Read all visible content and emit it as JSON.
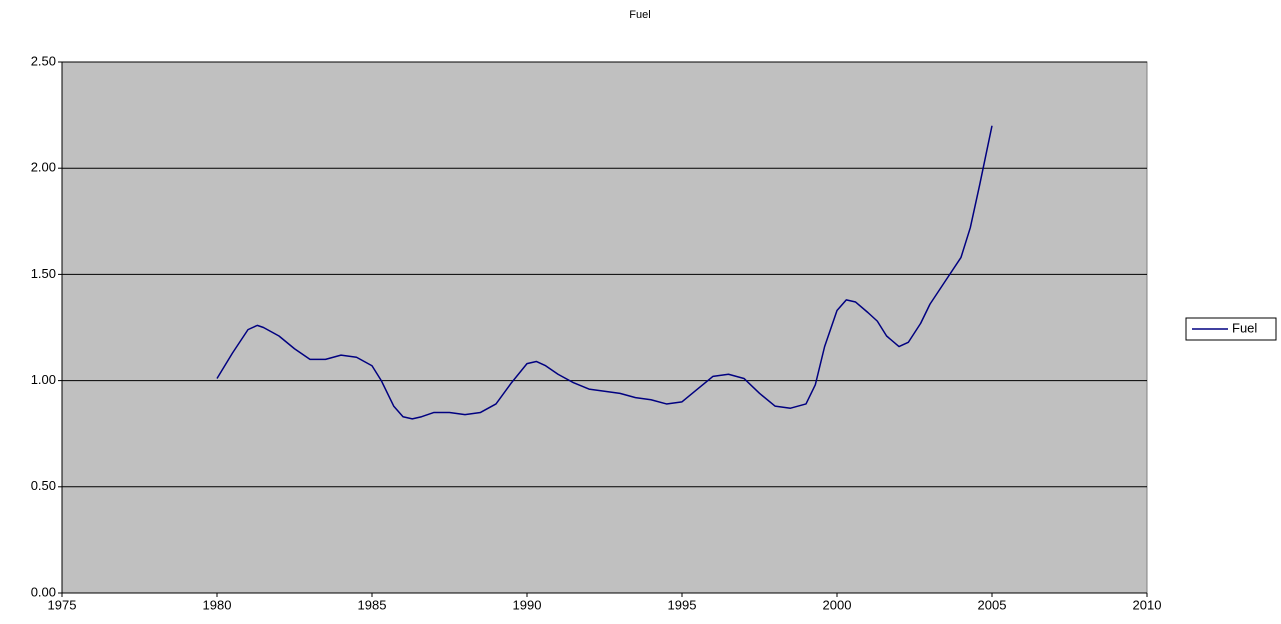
{
  "chart_data": {
    "type": "line",
    "title": "Fuel",
    "series": [
      {
        "name": "Fuel",
        "color": "#000080",
        "x": [
          1980,
          1980.5,
          1981,
          1981.3,
          1981.5,
          1982,
          1982.5,
          1983,
          1983.5,
          1984,
          1984.5,
          1985,
          1985.3,
          1985.7,
          1986,
          1986.3,
          1986.6,
          1987,
          1987.5,
          1988,
          1988.5,
          1989,
          1989.5,
          1990,
          1990.3,
          1990.6,
          1991,
          1991.5,
          1992,
          1992.5,
          1993,
          1993.5,
          1994,
          1994.5,
          1995,
          1995.5,
          1996,
          1996.5,
          1997,
          1997.5,
          1998,
          1998.5,
          1999,
          1999.3,
          1999.6,
          2000,
          2000.3,
          2000.6,
          2001,
          2001.3,
          2001.6,
          2002,
          2002.3,
          2002.7,
          2003,
          2003.5,
          2004,
          2004.3,
          2004.6,
          2005
        ],
        "values": [
          1.01,
          1.13,
          1.24,
          1.26,
          1.25,
          1.21,
          1.15,
          1.1,
          1.1,
          1.12,
          1.11,
          1.07,
          1.0,
          0.88,
          0.83,
          0.82,
          0.83,
          0.85,
          0.85,
          0.84,
          0.85,
          0.89,
          0.99,
          1.08,
          1.09,
          1.07,
          1.03,
          0.99,
          0.96,
          0.95,
          0.94,
          0.92,
          0.91,
          0.89,
          0.9,
          0.96,
          1.02,
          1.03,
          1.01,
          0.94,
          0.88,
          0.87,
          0.89,
          0.98,
          1.16,
          1.33,
          1.38,
          1.37,
          1.32,
          1.28,
          1.21,
          1.16,
          1.18,
          1.27,
          1.36,
          1.47,
          1.58,
          1.72,
          1.92,
          2.2
        ]
      }
    ],
    "xlim": [
      1975,
      2010
    ],
    "xticks": [
      1975,
      1980,
      1985,
      1990,
      1995,
      2000,
      2005,
      2010
    ],
    "ylim": [
      0,
      2.5
    ],
    "yticks": [
      {
        "value": 0,
        "label": "0.00"
      },
      {
        "value": 0.5,
        "label": "0.50"
      },
      {
        "value": 1,
        "label": "1.00"
      },
      {
        "value": 1.5,
        "label": "1.50"
      },
      {
        "value": 2,
        "label": "2.00"
      },
      {
        "value": 2.5,
        "label": "2.50"
      }
    ],
    "grid": true,
    "plot_background": "#c0c0c0",
    "legend": "right"
  }
}
